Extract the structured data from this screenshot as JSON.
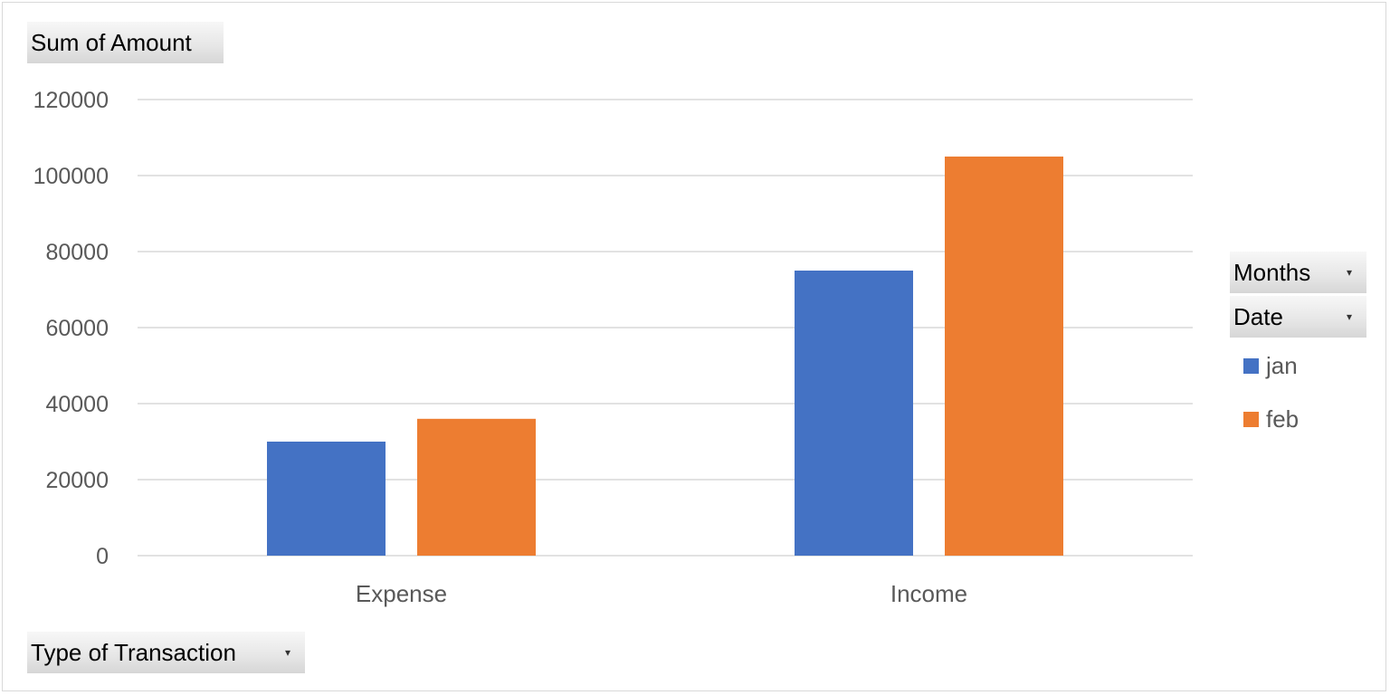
{
  "field_buttons": {
    "value_field": "Sum of Amount",
    "axis_field": "Type of Transaction",
    "legend_months": "Months",
    "legend_date": "Date",
    "dropdown_arrow": "▾"
  },
  "colors": {
    "jan": "#4472c4",
    "feb": "#ed7d31",
    "grid": "#d9d9d9",
    "text": "#595959"
  },
  "chart_data": {
    "type": "bar",
    "categories": [
      "Expense",
      "Income"
    ],
    "series": [
      {
        "name": "jan",
        "values": [
          30000,
          75000
        ]
      },
      {
        "name": "feb",
        "values": [
          36000,
          105000
        ]
      }
    ],
    "yticks": [
      "0",
      "20000",
      "40000",
      "60000",
      "80000",
      "100000",
      "120000"
    ],
    "ylim": [
      0,
      120000
    ],
    "grid": true,
    "legend": "right"
  }
}
